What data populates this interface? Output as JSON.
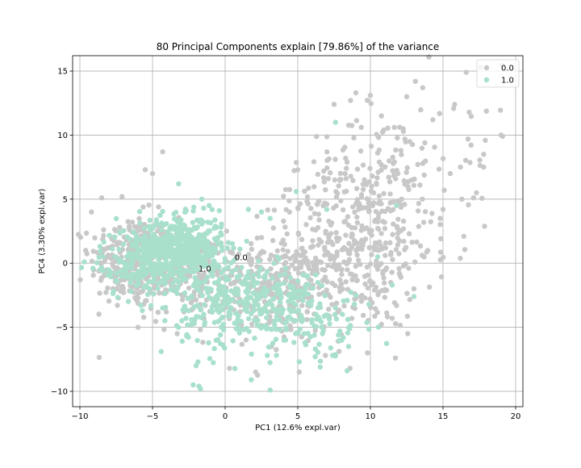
{
  "chart_data": {
    "type": "scatter",
    "title": "80 Principal Components explain [79.86%] of the variance",
    "xlabel": "PC1 (12.6% expl.var)",
    "ylabel": "PC4 (3.30% expl.var)",
    "xlim": [
      -10.5,
      20.5
    ],
    "ylim": [
      -11.2,
      16.2
    ],
    "xticks": [
      -10,
      -5,
      0,
      5,
      10,
      15,
      20
    ],
    "yticks": [
      -10,
      -5,
      0,
      5,
      10,
      15
    ],
    "grid": true,
    "legend_position": "top-right",
    "series": [
      {
        "name": "0.0",
        "color": "#c8c8c8",
        "centroid": [
          1.1,
          0.5
        ],
        "clusters": [
          {
            "n": 260,
            "cx": -6.5,
            "cy": 0.2,
            "sx": 1.4,
            "sy": 1.8
          },
          {
            "n": 130,
            "cx": -3.0,
            "cy": -1.0,
            "sx": 1.6,
            "sy": 1.8
          },
          {
            "n": 320,
            "cx": 3.5,
            "cy": -1.8,
            "sx": 2.5,
            "sy": 1.8
          },
          {
            "n": 260,
            "cx": 9.5,
            "cy": 1.0,
            "sx": 2.4,
            "sy": 3.2
          },
          {
            "n": 120,
            "cx": 11.0,
            "cy": 6.5,
            "sx": 2.0,
            "sy": 3.0
          },
          {
            "n": 80,
            "cx": 7.0,
            "cy": 4.0,
            "sx": 1.8,
            "sy": 2.5
          },
          {
            "n": 30,
            "cx": 15.5,
            "cy": 8.5,
            "sx": 2.5,
            "sy": 3.5
          }
        ],
        "points": [
          [
            19.0,
            10.0
          ],
          [
            19.1,
            9.9
          ],
          [
            16.6,
            14.9
          ],
          [
            17.6,
            15.3
          ],
          [
            15.8,
            12.4
          ],
          [
            17.8,
            8.5
          ],
          [
            17.8,
            7.5
          ],
          [
            17.3,
            5.5
          ],
          [
            16.2,
            7.5
          ],
          [
            17.1,
            5.1
          ],
          [
            16.3,
            5.0
          ],
          [
            15.5,
            7.0
          ],
          [
            15.0,
            4.2
          ],
          [
            14.8,
            3.5
          ],
          [
            13.1,
            14.2
          ],
          [
            13.6,
            13.7
          ],
          [
            14.3,
            11.2
          ],
          [
            12.5,
            13.0
          ],
          [
            9.0,
            13.3
          ],
          [
            7.5,
            12.4
          ],
          [
            10.0,
            13.1
          ],
          [
            -5.5,
            7.3
          ],
          [
            -5.0,
            7.0
          ],
          [
            -4.3,
            8.7
          ],
          [
            -7.1,
            5.2
          ],
          [
            -8.5,
            5.1
          ],
          [
            -9.2,
            4.0
          ],
          [
            -9.6,
            1.0
          ],
          [
            -6.0,
            -5.0
          ],
          [
            -3.3,
            -5.5
          ],
          [
            0.3,
            -8.2
          ],
          [
            3.2,
            -6.5
          ],
          [
            5.1,
            -8.5
          ],
          [
            2.1,
            -8.5
          ],
          [
            11.8,
            -3.3
          ],
          [
            11.5,
            -4.3
          ],
          [
            9.8,
            -7.0
          ],
          [
            8.6,
            -8.2
          ],
          [
            13.0,
            -2.0
          ],
          [
            12.0,
            -0.8
          ]
        ]
      },
      {
        "name": "1.0",
        "color": "#a8e0cc",
        "centroid": [
          -1.2,
          -0.4
        ],
        "clusters": [
          {
            "n": 500,
            "cx": -3.0,
            "cy": 1.2,
            "sx": 1.4,
            "sy": 1.2
          },
          {
            "n": 150,
            "cx": -6.0,
            "cy": 0.0,
            "sx": 1.3,
            "sy": 1.4
          },
          {
            "n": 240,
            "cx": 0.5,
            "cy": -3.0,
            "sx": 2.0,
            "sy": 1.8
          },
          {
            "n": 130,
            "cx": 4.5,
            "cy": -3.5,
            "sx": 1.8,
            "sy": 1.6
          },
          {
            "n": 30,
            "cx": 8.0,
            "cy": -5.0,
            "sx": 1.2,
            "sy": 1.5
          }
        ],
        "points": [
          [
            -9.7,
            0.1
          ],
          [
            -8.6,
            -0.5
          ],
          [
            -8.4,
            -0.6
          ],
          [
            -9.1,
            -0.4
          ],
          [
            -3.2,
            6.2
          ],
          [
            -1.1,
            4.5
          ],
          [
            -1.6,
            5.0
          ],
          [
            -0.4,
            4.1
          ],
          [
            1.6,
            4.2
          ],
          [
            2.5,
            4.0
          ],
          [
            3.1,
            3.5
          ],
          [
            -4.3,
            -3.5
          ],
          [
            -5.7,
            -3.7
          ],
          [
            -4.4,
            -6.9
          ],
          [
            -1.7,
            -9.8
          ],
          [
            -2.2,
            -9.5
          ],
          [
            -1.8,
            -9.6
          ],
          [
            1.8,
            -9.1
          ],
          [
            3.1,
            -9.9
          ],
          [
            5.1,
            -7.7
          ],
          [
            5.5,
            -6.2
          ],
          [
            6.2,
            -7.3
          ],
          [
            7.4,
            -7.2
          ],
          [
            8.5,
            -6.5
          ],
          [
            8.4,
            -8.4
          ],
          [
            7.8,
            -5.6
          ],
          [
            8.9,
            -3.2
          ],
          [
            11.5,
            -1.7
          ],
          [
            13.0,
            -2.6
          ],
          [
            7.6,
            11.0
          ],
          [
            7.0,
            4.2
          ],
          [
            4.9,
            5.6
          ],
          [
            10.5,
            0.5
          ],
          [
            9.0,
            -2.5
          ],
          [
            6.7,
            -5.5
          ],
          [
            2.9,
            -7.2
          ],
          [
            -0.1,
            -5.2
          ],
          [
            -2.5,
            -3.7
          ],
          [
            -2.0,
            -8.0
          ],
          [
            11.8,
            4.5
          ]
        ]
      }
    ],
    "annotations": [
      {
        "text": "0.0",
        "x": 1.1,
        "y": 0.5
      },
      {
        "text": "1.0",
        "x": -1.4,
        "y": -0.4
      }
    ]
  }
}
